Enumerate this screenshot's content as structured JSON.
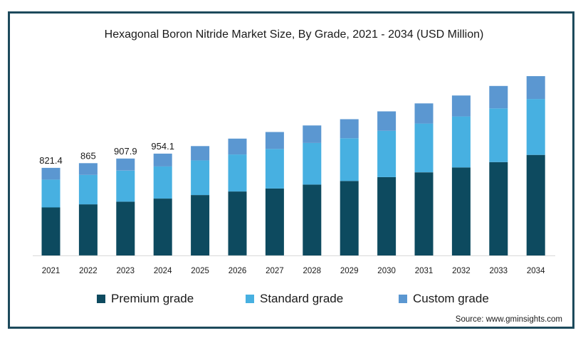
{
  "chart_data": {
    "type": "bar",
    "stacked": true,
    "title": "Hexagonal Boron Nitride Market Size, By Grade, 2021 - 2034 (USD Million)",
    "xlabel": "",
    "ylabel": "",
    "categories": [
      "2021",
      "2022",
      "2023",
      "2024",
      "2025",
      "2026",
      "2027",
      "2028",
      "2029",
      "2030",
      "2031",
      "2032",
      "2033",
      "2034"
    ],
    "series": [
      {
        "name": "Premium grade",
        "color": "#0d4a5f",
        "values": [
          450,
          479,
          504,
          533,
          566,
          599,
          627,
          664,
          698,
          734,
          779,
          825,
          875,
          942
        ]
      },
      {
        "name": "Standard grade",
        "color": "#47b0e1",
        "values": [
          261,
          276,
          291,
          301,
          325,
          347,
          371,
          390,
          400,
          434,
          457,
          478,
          503,
          524
        ]
      },
      {
        "name": "Custom grade",
        "color": "#5b97d1",
        "values": [
          110,
          110,
          113,
          120,
          134,
          149,
          159,
          164,
          179,
          182,
          189,
          196,
          210,
          214
        ]
      }
    ],
    "data_labels": [
      "821.4",
      "865",
      "907.9",
      "954.1",
      "",
      "",
      "",
      "",
      "",
      "",
      "",
      "",
      "",
      ""
    ],
    "ylim": [
      0,
      1800
    ],
    "grid": false,
    "legend_position": "bottom"
  },
  "source": "Source: www.gminsights.com"
}
